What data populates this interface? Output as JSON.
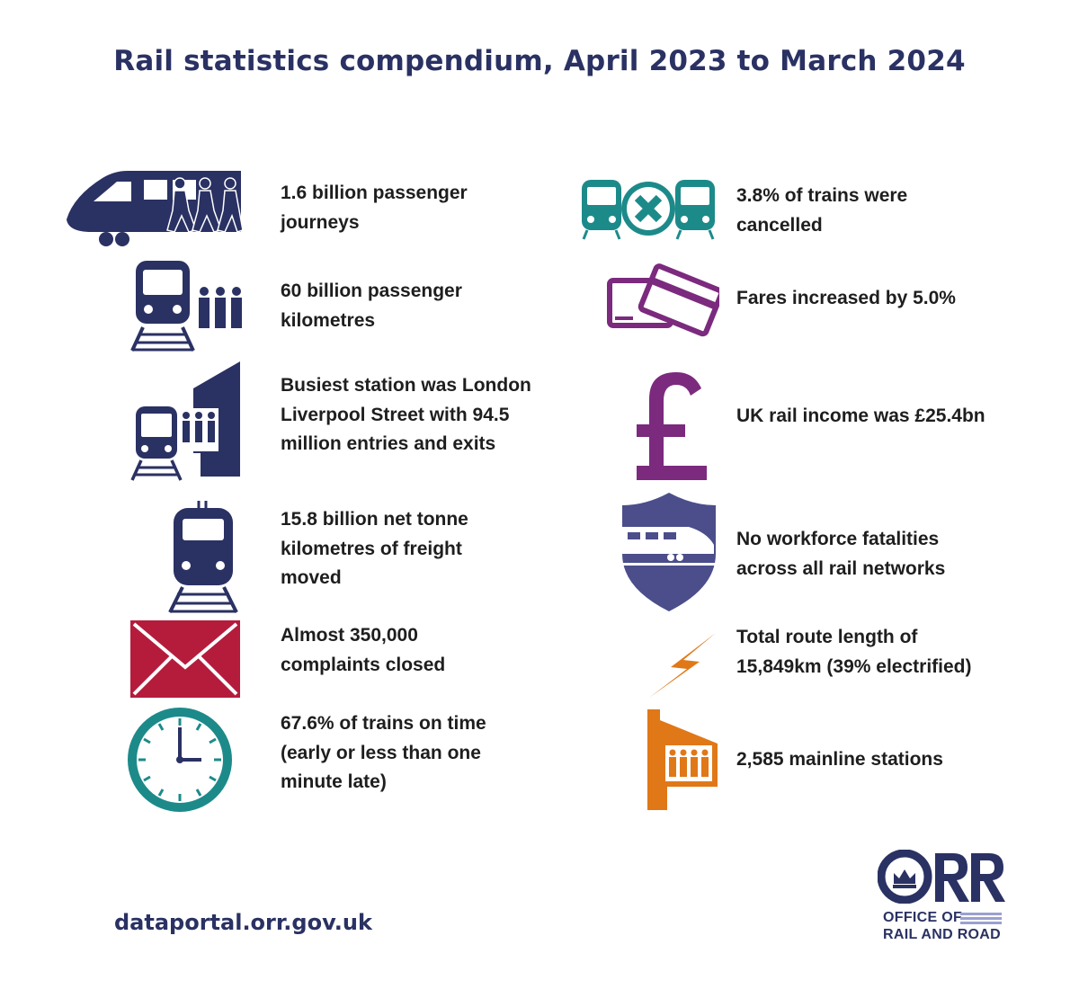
{
  "title": "Rail statistics compendium, April 2023 to March 2024",
  "colors": {
    "navy": "#2a3163",
    "teal": "#1d8a8a",
    "purple": "#7b2a7e",
    "red": "#b51c3c",
    "slate": "#4b4e8a",
    "orange": "#e07818"
  },
  "left_stats": [
    {
      "icon": "train-with-passengers-icon",
      "text": "1.6 billion passenger\njourneys"
    },
    {
      "icon": "train-front-with-passengers-icon",
      "text": "60 billion passenger\nkilometres"
    },
    {
      "icon": "station-train-icon",
      "text": "Busiest station was London\nLiverpool Street with 94.5\nmillion entries and exits"
    },
    {
      "icon": "freight-locomotive-icon",
      "text": "15.8 billion net tonne\nkilometres of freight\nmoved"
    },
    {
      "icon": "envelope-icon",
      "text": "Almost 350,000\ncomplaints closed"
    },
    {
      "icon": "clock-icon",
      "text": "67.6% of trains on time\n(early or less than one\nminute late)"
    }
  ],
  "right_stats": [
    {
      "icon": "cancelled-trains-icon",
      "text": "3.8% of trains were\ncancelled"
    },
    {
      "icon": "tickets-icon",
      "text": "Fares increased by 5.0%"
    },
    {
      "icon": "pound-sign-icon",
      "text": "UK rail income was £25.4bn"
    },
    {
      "icon": "safety-shield-train-icon",
      "text": "No workforce fatalities\nacross all rail networks"
    },
    {
      "icon": "lightning-bolt-icon",
      "text": "Total route length of\n15,849km (39% electrified)"
    },
    {
      "icon": "station-building-icon",
      "text": "2,585 mainline stations"
    }
  ],
  "footer": {
    "url": "dataportal.orr.gov.uk",
    "logo_letters": "ORR",
    "logo_line1": "OFFICE OF",
    "logo_line2": "RAIL AND ROAD"
  }
}
